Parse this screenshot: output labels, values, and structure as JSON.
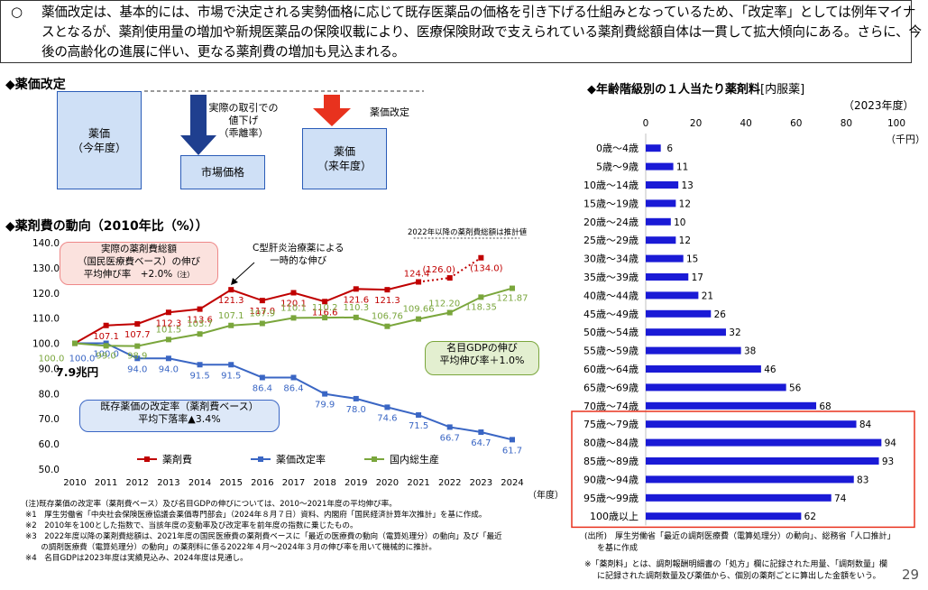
{
  "intro": {
    "bullet": "○",
    "text": "薬価改定は、基本的には、市場で決定される実勢価格に応じて既存医薬品の価格を引き下げる仕組みとなっているため、「改定率」としては例年マイナスとなるが、薬剤使用量の増加や新規医薬品の保険収載により、医療保険財政で支えられている薬剤費総額自体は一貫して拡大傾向にある。さらに、今後の高齢化の進展に伴い、更なる薬剤費の増加も見込まれる。"
  },
  "revision": {
    "section_title": "◆薬価改定",
    "box_current": [
      "薬価",
      "（今年度）"
    ],
    "arrow_text": [
      "実際の取引での",
      "値下げ",
      "（乖離率）"
    ],
    "box_market": "市場価格",
    "revision_label": "薬価改定",
    "box_next": [
      "薬価",
      "（来年度）"
    ],
    "colors": {
      "box_fill": "#cfe0f6",
      "down_arrow": "#1f3f8f",
      "red_arrow": "#e8321e"
    }
  },
  "trend": {
    "section_title": "◆薬剤費の動向（2010年比（%））",
    "estimate_note": "2022年以降の薬剤費総額は推計値",
    "callout_actual": [
      "実際の薬剤費総額",
      "（国民医療費ベース）の伸び",
      "平均伸び率　+2.0%"
    ],
    "callout_actual_note": "（注）",
    "hep_c_note": [
      "C型肝炎治療薬による",
      "一時的な伸び"
    ],
    "gdp_callout": [
      "名目GDPの伸び",
      "平均伸び率＋1.0%"
    ],
    "revision_callout": [
      "既存薬価の改定率（薬剤費ベース）",
      "平均下落率▲3.4%"
    ],
    "base_amount": "7.9兆円",
    "year_unit": "（年度）",
    "legend": [
      "薬剤費",
      "薬価改定率",
      "国内総生産"
    ]
  },
  "chart_data": [
    {
      "type": "line",
      "x": [
        2010,
        2011,
        2012,
        2013,
        2014,
        2015,
        2016,
        2017,
        2018,
        2019,
        2020,
        2021,
        2022,
        2023,
        2024
      ],
      "x_ticks": [
        "2010",
        "2011",
        "2012",
        "2013",
        "2014",
        "2015",
        "2016",
        "2017",
        "2018",
        "2019",
        "2020",
        "2021",
        "2022",
        "2023",
        "2024"
      ],
      "ylim": [
        50,
        140
      ],
      "y_ticks": [
        "140.0",
        "130.0",
        "120.0",
        "110.0",
        "100.0",
        "90.0",
        "80.0",
        "70.0",
        "60.0",
        "50.0"
      ],
      "series": [
        {
          "name": "薬剤費",
          "color": "#c00000",
          "values": [
            100.0,
            107.1,
            107.7,
            112.3,
            113.6,
            121.3,
            117.0,
            120.1,
            116.6,
            121.6,
            121.3,
            124.4,
            126.0,
            134.0,
            null
          ],
          "labels": [
            "",
            "107.1",
            "107.7",
            "112.3",
            "113.6",
            "121.3",
            "117.0",
            "120.1",
            "116.6",
            "121.6",
            "121.3",
            "124.4",
            "(126.0)",
            "(134.0)",
            ""
          ],
          "estimated_from": 2021
        },
        {
          "name": "薬価改定率",
          "color": "#3a66c4",
          "values": [
            100.0,
            100.0,
            94.0,
            94.0,
            91.5,
            91.5,
            86.4,
            86.4,
            79.9,
            78.0,
            74.6,
            71.5,
            66.7,
            64.7,
            61.7
          ],
          "labels": [
            "100.0",
            "100.0",
            "94.0",
            "94.0",
            "91.5",
            "91.5",
            "86.4",
            "86.4",
            "79.9",
            "78.0",
            "74.6",
            "71.5",
            "66.7",
            "64.7",
            "61.7"
          ]
        },
        {
          "name": "国内総生産",
          "color": "#7aa63c",
          "values": [
            100.0,
            99.0,
            98.9,
            101.5,
            103.7,
            107.1,
            107.9,
            110.1,
            110.2,
            110.3,
            106.76,
            109.66,
            112.2,
            118.35,
            121.87
          ],
          "labels": [
            "100.0",
            "99.0",
            "98.9",
            "101.5",
            "103.7",
            "107.1",
            "107.9",
            "110.1",
            "110.2",
            "110.3",
            "106.76",
            "109.66",
            "112.20",
            "118.35",
            "121.87"
          ]
        }
      ]
    },
    {
      "type": "bar",
      "title": "◆年齢階級別の１人当たり薬剤料",
      "title_suffix": "[内服薬]",
      "subtitle": "（2023年度）",
      "unit": "（千円）",
      "xlim": [
        0,
        100
      ],
      "x_ticks": [
        "0",
        "20",
        "40",
        "60",
        "80",
        "100"
      ],
      "categories": [
        "0歳～4歳",
        "5歳～9歳",
        "10歳～14歳",
        "15歳～19歳",
        "20歳～24歳",
        "25歳～29歳",
        "30歳～34歳",
        "35歳～39歳",
        "40歳～44歳",
        "45歳～49歳",
        "50歳～54歳",
        "55歳～59歳",
        "60歳～64歳",
        "65歳～69歳",
        "70歳～74歳",
        "75歳～79歳",
        "80歳～84歳",
        "85歳～89歳",
        "90歳～94歳",
        "95歳～99歳",
        "100歳以上"
      ],
      "values": [
        6,
        11,
        13,
        12,
        10,
        12,
        15,
        17,
        21,
        26,
        32,
        38,
        46,
        56,
        68,
        84,
        94,
        93,
        83,
        74,
        62
      ],
      "color": "#1a1ad6",
      "highlight_from_index": 15,
      "highlight_color": "#e8321e"
    }
  ],
  "footnotes": [
    "(注)既存薬価の改定率（薬剤費ベース）及び名目GDPの伸びについては、2010～2021年度の平均伸び率。",
    "※1　厚生労働省「中央社会保険医療協議会薬価専門部会」（2024年８月７日）資料、内閣府「国民経済計算年次推計」を基に作成。",
    "※2　2010年を100とした指数で、当該年度の変動率及び改定率を前年度の指数に乗じたもの。",
    "※3　2022年度以降の薬剤費総額は、2021年度の国民医療費の薬剤費ベースに「最近の医療費の動向（電算処理分）の動向」及び「最近",
    "　　の調剤医療費（電算処理分）の動向」の薬剤料に係る2022年４月～2024年３月の伸び率を用いて機械的に推計。",
    "※4　名目GDPは2023年度は実績見込み、2024年度は見通し。"
  ],
  "source": [
    "(出所)　厚生労働省「最近の調剤医療費（電算処理分）の動向」、総務省「人口推計」",
    "を基に作成"
  ],
  "note_right": [
    "※「薬剤料」とは、調剤報酬明細書の「処方」欄に記録された用量、「調剤数量」欄",
    "に記録された調剤数量及び薬価から、個別の薬剤ごとに算出した金額をいう。"
  ],
  "page_number": "29"
}
